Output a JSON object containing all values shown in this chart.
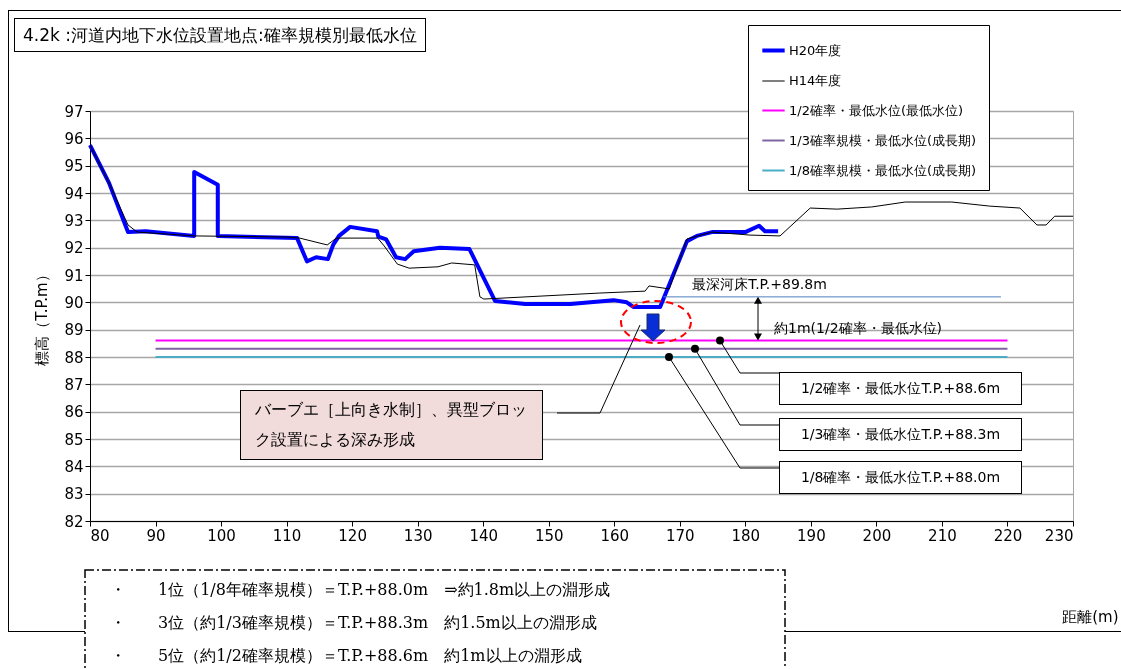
{
  "chart_data": {
    "type": "line",
    "title": "4.2k :河道内地下水位設置地点:確率規模別最低水位",
    "xlabel": "距離(m)",
    "ylabel": "標高（T.P.m）",
    "xlim": [
      80,
      230
    ],
    "xticks": [
      80,
      90,
      100,
      110,
      120,
      130,
      140,
      150,
      160,
      170,
      180,
      190,
      200,
      210,
      220,
      230
    ],
    "ylim": [
      82,
      97
    ],
    "yticks": [
      82,
      83,
      84,
      85,
      86,
      87,
      88,
      89,
      90,
      91,
      92,
      93,
      94,
      95,
      96,
      97
    ],
    "grid": "y",
    "legend": "top right",
    "marker": "none",
    "line_style": "solid",
    "series": [
      {
        "name": "H20年度",
        "color": "#0000ff",
        "x": [
          80,
          82.9,
          85.8,
          88.5,
          95.9,
          95.9,
          99.5,
          99.5,
          111.6,
          113.1,
          114.5,
          116.3,
          117.1,
          118,
          119.7,
          123.8,
          124,
          125.2,
          126.7,
          128.1,
          129.4,
          133.4,
          137.9,
          141.8,
          146.4,
          153.3,
          159.9,
          161.9,
          162.9,
          167,
          171.1,
          172.6,
          174.9,
          180,
          182.1,
          183,
          185
        ],
        "values": [
          95.75,
          94.37,
          92.57,
          92.6,
          92.43,
          94.77,
          94.3,
          92.43,
          92.35,
          91.5,
          91.65,
          91.58,
          92.1,
          92.43,
          92.76,
          92.6,
          92.4,
          92.3,
          91.65,
          91.58,
          91.87,
          92.0,
          91.95,
          90.05,
          89.94,
          89.94,
          90.08,
          90.0,
          89.83,
          89.83,
          92.24,
          92.43,
          92.57,
          92.57,
          92.8,
          92.6,
          92.6
        ]
      },
      {
        "name": "H14年度",
        "color": "#000000",
        "x": [
          80,
          82.9,
          85.8,
          87.2,
          95.9,
          109.8,
          112,
          116.2,
          117.6,
          123.9,
          124.9,
          126.9,
          128.7,
          133.1,
          135.2,
          138.7,
          139.5,
          140.1,
          157.8,
          164.7,
          165.3,
          168.4,
          171.1,
          174.9,
          180.7,
          185.3,
          189.9,
          194,
          199.3,
          204.4,
          211.5,
          217.3,
          221.9,
          224.5,
          225.9,
          227.2,
          230
        ],
        "values": [
          95.75,
          94.37,
          92.83,
          92.57,
          92.43,
          92.39,
          92.35,
          92.1,
          92.35,
          92.35,
          92.06,
          91.4,
          91.25,
          91.3,
          91.44,
          91.37,
          90.2,
          90.12,
          90.34,
          90.41,
          90.6,
          90.49,
          92.32,
          92.57,
          92.46,
          92.43,
          93.45,
          93.41,
          93.49,
          93.67,
          93.67,
          93.52,
          93.45,
          92.83,
          92.83,
          93.15,
          93.15
        ]
      },
      {
        "name": "1/2確率・最低水位(最低水位)",
        "color": "#ff00ff",
        "x": [
          90,
          220
        ],
        "values": [
          88.6,
          88.6
        ]
      },
      {
        "name": "1/3確率規模・最低水位(成長期)",
        "color": "#8064a2",
        "x": [
          90,
          220
        ],
        "values": [
          88.3,
          88.3
        ]
      },
      {
        "name": "1/8確率規模・最低水位(成長期)",
        "color": "#4bacc6",
        "x": [
          90,
          220
        ],
        "values": [
          88.0,
          88.0
        ]
      },
      {
        "color": "#4f81bd",
        "x": [
          167.5,
          219
        ],
        "values": [
          90.2,
          90.2
        ]
      }
    ],
    "annotations": [
      {
        "text": "最深河床T.P.+89.8m",
        "x": 171.9,
        "y": 90.2
      },
      "約1m(1/2確率・最低水位)",
      "1/2確率・最低水位T.P.+88.6m",
      "1/3確率・最低水位T.P.+88.3m",
      "1/8確率・最低水位T.P.+88.0m",
      "バーブエ［上向き水制］、異型ブロック設置による深み形成",
      "・　　1位（1/8年確率規模）＝T.P.+88.0m　⇒約1.8m以上の淵形成",
      "・　　3位（約1/3確率規模）＝T.P.+88.3m　約1.5m以上の淵形成",
      "・　　5位（約1/2確率規模）＝T.P.+88.6m　約1m以上の淵形成"
    ]
  }
}
